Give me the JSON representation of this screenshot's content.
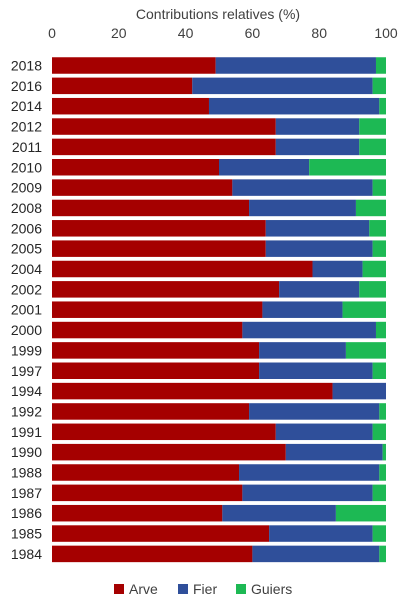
{
  "chart_data": {
    "type": "bar",
    "orientation": "horizontal",
    "stacked": true,
    "title": "",
    "xlabel": "Contributions relatives (%)",
    "xaxis_position": "top",
    "xlim": [
      0,
      100
    ],
    "xticks": [
      0,
      20,
      40,
      60,
      80,
      100
    ],
    "grid": false,
    "legend_position": "bottom",
    "categories": [
      "2018",
      "2016",
      "2014",
      "2012",
      "2011",
      "2010",
      "2009",
      "2008",
      "2006",
      "2005",
      "2004",
      "2002",
      "2001",
      "2000",
      "1999",
      "1997",
      "1994",
      "1992",
      "1991",
      "1990",
      "1988",
      "1987",
      "1986",
      "1985",
      "1984"
    ],
    "series": [
      {
        "name": "Arve",
        "color": "#A50000",
        "values": [
          49,
          42,
          47,
          67,
          67,
          50,
          54,
          59,
          64,
          64,
          78,
          68,
          63,
          57,
          62,
          62,
          84,
          59,
          67,
          70,
          56,
          57,
          51,
          65,
          60
        ]
      },
      {
        "name": "Fier",
        "color": "#2F4F9A",
        "values": [
          48,
          54,
          51,
          25,
          25,
          27,
          42,
          32,
          31,
          32,
          15,
          24,
          24,
          40,
          26,
          34,
          16,
          39,
          29,
          29,
          42,
          39,
          34,
          31,
          38
        ]
      },
      {
        "name": "Guiers",
        "color": "#1DB954",
        "values": [
          3,
          4,
          2,
          8,
          8,
          23,
          4,
          9,
          5,
          4,
          7,
          8,
          13,
          3,
          12,
          4,
          0,
          2,
          4,
          1,
          2,
          4,
          15,
          4,
          2
        ]
      }
    ]
  }
}
